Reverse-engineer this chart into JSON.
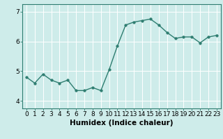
{
  "x": [
    0,
    1,
    2,
    3,
    4,
    5,
    6,
    7,
    8,
    9,
    10,
    11,
    12,
    13,
    14,
    15,
    16,
    17,
    18,
    19,
    20,
    21,
    22,
    23
  ],
  "y": [
    4.8,
    4.6,
    4.9,
    4.7,
    4.6,
    4.7,
    4.35,
    4.35,
    4.45,
    4.35,
    5.05,
    5.85,
    6.55,
    6.65,
    6.7,
    6.75,
    6.55,
    6.3,
    6.1,
    6.15,
    6.15,
    5.95,
    6.15,
    6.2
  ],
  "line_color": "#2e7d70",
  "marker": "o",
  "marker_size": 2.5,
  "line_width": 1.0,
  "xlabel": "Humidex (Indice chaleur)",
  "xlim": [
    -0.5,
    23.5
  ],
  "ylim": [
    3.75,
    7.25
  ],
  "yticks": [
    4,
    5,
    6,
    7
  ],
  "xticks": [
    0,
    1,
    2,
    3,
    4,
    5,
    6,
    7,
    8,
    9,
    10,
    11,
    12,
    13,
    14,
    15,
    16,
    17,
    18,
    19,
    20,
    21,
    22,
    23
  ],
  "bg_color": "#ceecea",
  "grid_color": "#ffffff",
  "tick_label_fontsize": 6.5,
  "xlabel_fontsize": 7.5,
  "spine_color": "#2e7d70"
}
